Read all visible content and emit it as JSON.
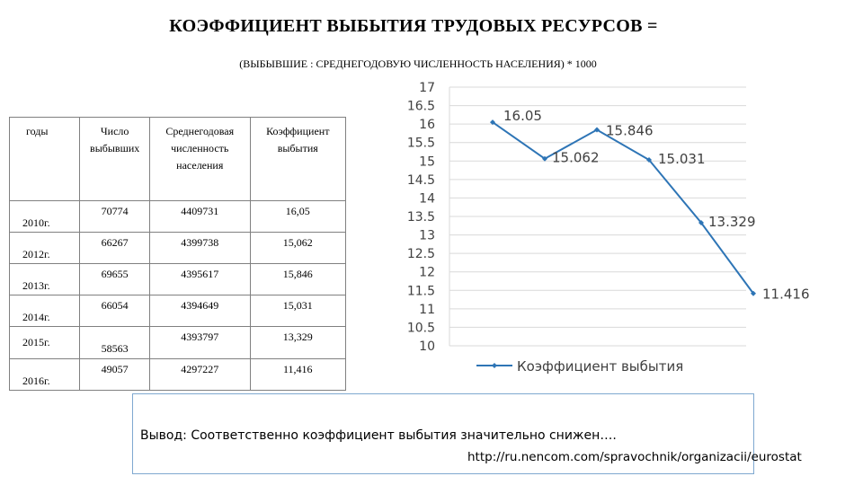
{
  "title": "КОЭФФИЦИЕНТ ВЫБЫТИЯ ТРУДОВЫХ РЕСУРСОВ =",
  "subtitle": "(ВЫБЫВШИЕ : СРЕДНЕГОДОВУЮ ЧИСЛЕННОСТЬ НАСЕЛЕНИЯ) * 1000",
  "table": {
    "headers": [
      "годы",
      "Число выбывших",
      "Среднегодовая численность населения",
      "Коэффициент выбытия"
    ],
    "rows": [
      [
        "2010г.",
        "70774",
        "4409731",
        "16,05"
      ],
      [
        "2012г.",
        "66267",
        "4399738",
        "15,062"
      ],
      [
        "2013г.",
        "69655",
        "4395617",
        "15,846"
      ],
      [
        "2014г.",
        "66054",
        "4394649",
        "15,031"
      ],
      [
        "2015г.",
        "58563",
        "4393797",
        "13,329"
      ],
      [
        "2016г.",
        "49057",
        "4297227",
        "11,416"
      ]
    ]
  },
  "chart_data": {
    "type": "line",
    "x": [
      1,
      2,
      3,
      4,
      5,
      6
    ],
    "values": [
      16.05,
      15.062,
      15.846,
      15.031,
      13.329,
      11.416
    ],
    "data_labels": [
      "16.05",
      "15.062",
      "15.846",
      "15.031",
      "13.329",
      "11.416"
    ],
    "series": [
      {
        "name": "Коэффициент выбытия",
        "values": [
          16.05,
          15.062,
          15.846,
          15.031,
          13.329,
          11.416
        ]
      }
    ],
    "ylim": [
      10,
      17
    ],
    "y_ticks": [
      "10",
      "10.5",
      "11",
      "11.5",
      "12",
      "12.5",
      "13",
      "13.5",
      "14",
      "14.5",
      "15",
      "15.5",
      "16",
      "16.5",
      "17"
    ],
    "grid": true,
    "legend": "bottom",
    "line_color": "#2e75b6",
    "title": "",
    "xlabel": "",
    "ylabel": ""
  },
  "conclusion": {
    "text": "Вывод: Соответственно коэффициент выбытия значительно снижен….",
    "link": "http://ru.nencom.com/spravochnik/organizacii/eurostat"
  }
}
